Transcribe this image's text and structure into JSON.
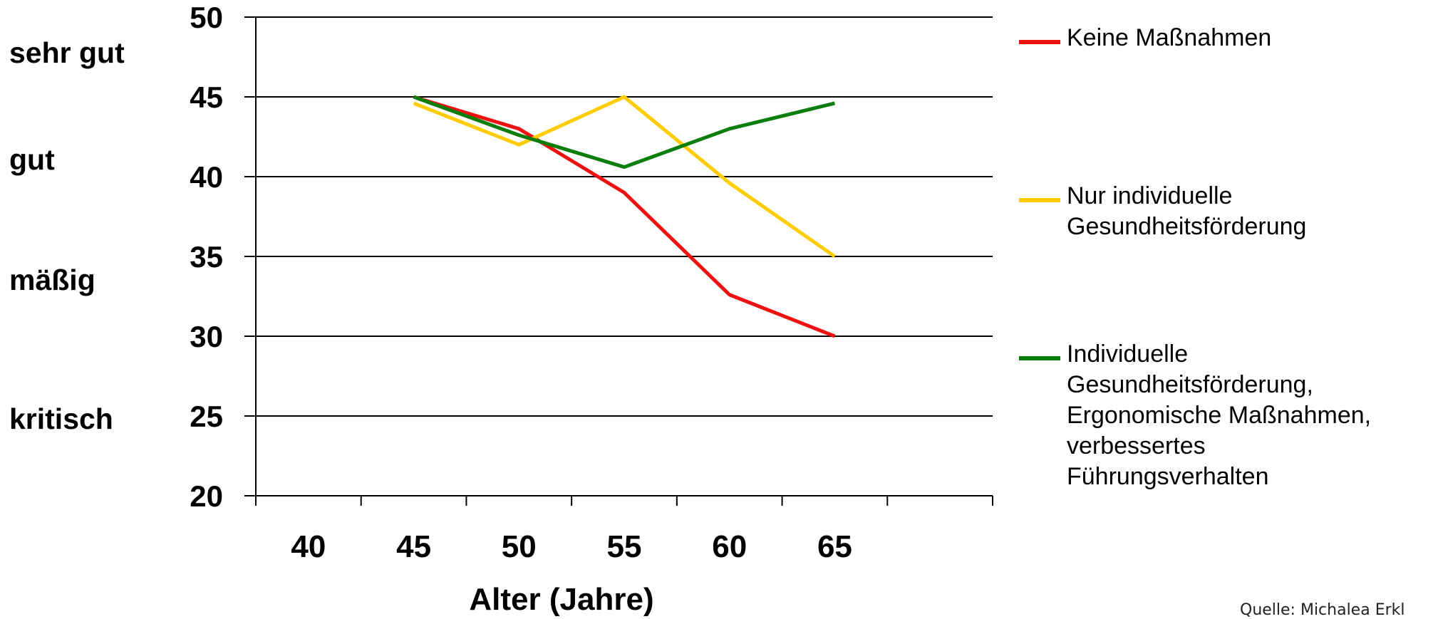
{
  "rating_labels": [
    {
      "text": "sehr gut",
      "color": "#00b050"
    },
    {
      "text": "gut",
      "color": "#92d050"
    },
    {
      "text": "mäßig",
      "color": "#f39c12"
    },
    {
      "text": "kritisch",
      "color": "#c00000"
    }
  ],
  "source": "Quelle:  Michalea Erkl",
  "chart_data": {
    "type": "line",
    "xlabel": "Alter (Jahre)",
    "ylabel": "",
    "ylim": [
      20,
      50
    ],
    "yticks": [
      "20",
      "25",
      "30",
      "35",
      "40",
      "45",
      "50"
    ],
    "xlim": [
      37.5,
      72.5
    ],
    "xticks": [
      "40",
      "45",
      "50",
      "55",
      "60",
      "65"
    ],
    "grid": true,
    "legend_position": "right",
    "x": [
      45,
      50,
      55,
      60,
      65
    ],
    "series": [
      {
        "name": "Keine Maßnahmen",
        "color": "#ee1111",
        "values": [
          45,
          43,
          39,
          32.6,
          30
        ]
      },
      {
        "name": "Nur individuelle\nGesundheitsförderung",
        "color": "#ffcc00",
        "values": [
          44.6,
          42,
          45,
          39.6,
          35
        ]
      },
      {
        "name": "Individuelle\nGesundheitsförderung,\nErgonomische Maßnahmen,\nverbessertes\nFührungsverhalten",
        "color": "#0a7d0a",
        "values": [
          45,
          42.6,
          40.6,
          43,
          44.6
        ]
      }
    ]
  }
}
